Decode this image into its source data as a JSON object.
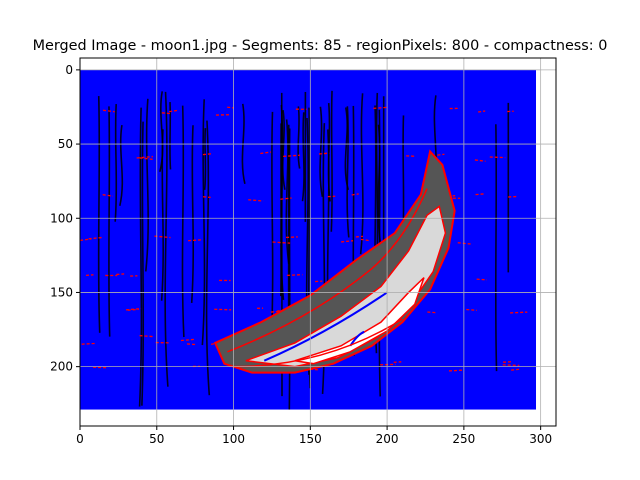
{
  "chart_data": {
    "type": "image-plot",
    "title": "Merged Image - moon1.jpg - Segments: 85 - regionPixels: 800 - compactness: 0",
    "xlim": [
      0,
      310
    ],
    "ylim": [
      240,
      -8
    ],
    "y_inverted": true,
    "x_ticks": [
      0,
      50,
      100,
      150,
      200,
      250,
      300
    ],
    "y_ticks": [
      0,
      50,
      100,
      150,
      200
    ],
    "x_tick_labels": [
      "0",
      "50",
      "100",
      "150",
      "200",
      "250",
      "300"
    ],
    "y_tick_labels": [
      "0",
      "50",
      "100",
      "150",
      "200"
    ],
    "grid": true,
    "image_extent": {
      "x": [
        0,
        297
      ],
      "y": [
        0,
        229
      ]
    },
    "colors": {
      "background_segments": "#0000ff",
      "boundaries": "#ff0000",
      "texture_lines": "#000000",
      "moon_dark": "#555555",
      "moon_light": "#d9d9d9",
      "moon_bright": "#ffffff",
      "grid": "#b0b0b0"
    }
  }
}
